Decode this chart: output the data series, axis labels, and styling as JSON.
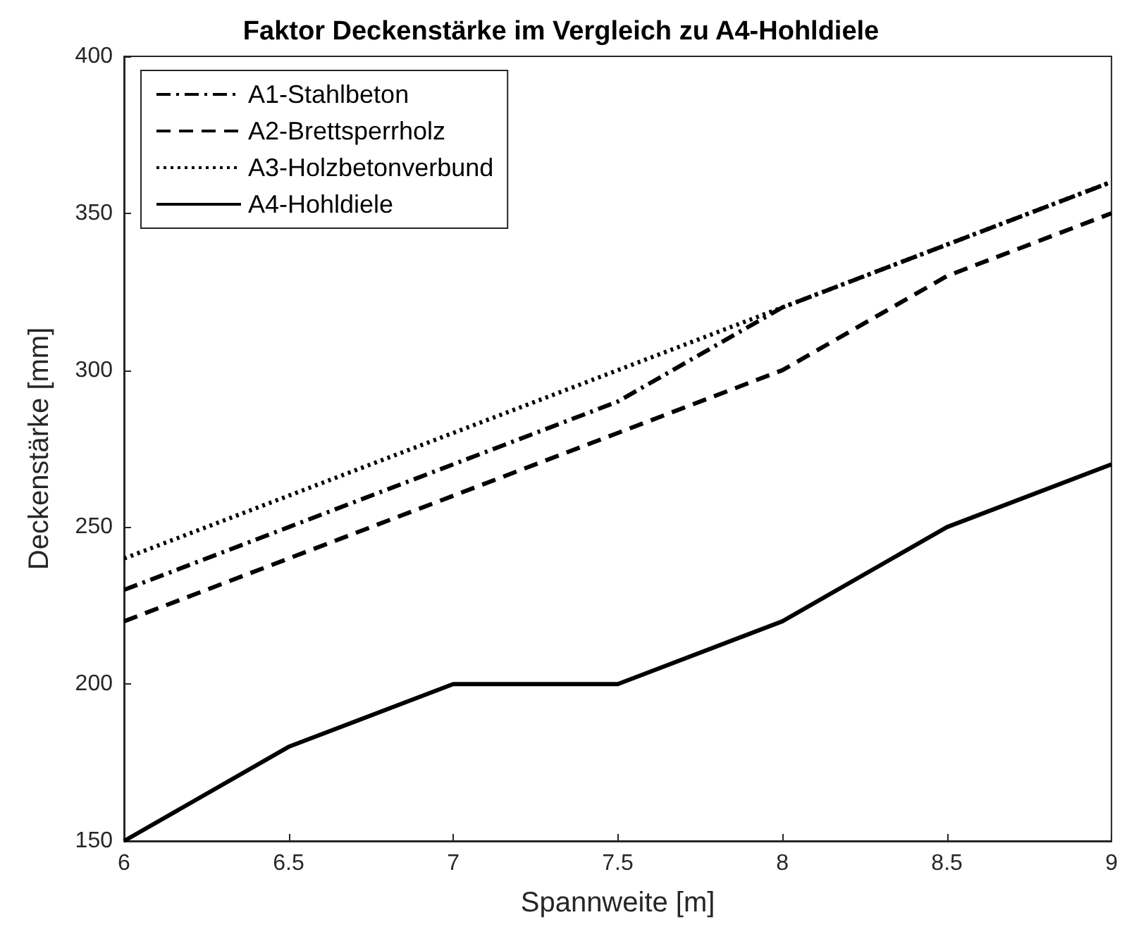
{
  "chart_data": {
    "type": "line",
    "title": "Faktor Deckenstärke im Vergleich zu A4-Hohldiele",
    "xlabel": "Spannweite [m]",
    "ylabel": "Deckenstärke [mm]",
    "x": [
      6,
      6.5,
      7,
      7.5,
      8,
      8.5,
      9
    ],
    "series": [
      {
        "name": "A1-Stahlbeton",
        "color": "#000000",
        "line_style": "dashdot",
        "values": [
          230,
          250,
          270,
          290,
          320,
          340,
          360
        ]
      },
      {
        "name": "A2-Brettsperrholz",
        "color": "#000000",
        "line_style": "dashed",
        "values": [
          220,
          240,
          260,
          280,
          300,
          330,
          350
        ]
      },
      {
        "name": "A3-Holzbetonverbund",
        "color": "#000000",
        "line_style": "dotted",
        "values": [
          240,
          260,
          280,
          300,
          320,
          340,
          360
        ]
      },
      {
        "name": "A4-Hohldiele",
        "color": "#000000",
        "line_style": "solid",
        "values": [
          150,
          180,
          200,
          200,
          220,
          250,
          270
        ]
      }
    ],
    "xlim": [
      6,
      9
    ],
    "xticks": [
      6,
      6.5,
      7,
      7.5,
      8,
      8.5,
      9
    ],
    "ylim": [
      150,
      400
    ],
    "yticks": [
      150,
      200,
      250,
      300,
      350,
      400
    ],
    "grid": false,
    "legend": "top left",
    "marker": "none"
  }
}
